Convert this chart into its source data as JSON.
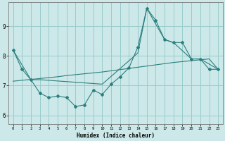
{
  "xlabel": "Humidex (Indice chaleur)",
  "background_color": "#cce8e8",
  "line_color": "#2d7f7f",
  "grid_color": "#99cccc",
  "xlim": [
    -0.5,
    23.5
  ],
  "ylim": [
    5.7,
    9.8
  ],
  "yticks": [
    6,
    7,
    8,
    9
  ],
  "xticks": [
    0,
    1,
    2,
    3,
    4,
    5,
    6,
    7,
    8,
    9,
    10,
    11,
    12,
    13,
    14,
    15,
    16,
    17,
    18,
    19,
    20,
    21,
    22,
    23
  ],
  "line1_x": [
    0,
    1,
    2,
    3,
    4,
    5,
    6,
    7,
    8,
    9,
    10,
    11,
    12,
    13,
    14,
    15,
    16,
    17,
    18,
    19,
    20,
    21,
    22,
    23
  ],
  "line1_y": [
    8.2,
    7.55,
    7.2,
    6.75,
    6.6,
    6.65,
    6.6,
    6.3,
    6.35,
    6.85,
    6.7,
    7.05,
    7.3,
    7.6,
    8.3,
    9.6,
    9.2,
    8.55,
    8.45,
    8.45,
    7.9,
    7.9,
    7.55,
    7.55
  ],
  "line2_x": [
    0,
    2,
    3,
    10,
    14,
    15,
    17,
    18,
    20,
    21,
    23
  ],
  "line2_y": [
    8.2,
    7.2,
    7.2,
    7.05,
    8.1,
    9.6,
    8.55,
    8.45,
    7.9,
    7.9,
    7.55
  ],
  "line3_x": [
    0,
    1,
    2,
    3,
    4,
    5,
    6,
    7,
    8,
    9,
    10,
    11,
    12,
    13,
    14,
    15,
    16,
    17,
    18,
    19,
    20,
    21,
    22,
    23
  ],
  "line3_y": [
    7.15,
    7.18,
    7.21,
    7.24,
    7.27,
    7.3,
    7.34,
    7.37,
    7.4,
    7.43,
    7.46,
    7.5,
    7.54,
    7.58,
    7.62,
    7.66,
    7.7,
    7.74,
    7.78,
    7.81,
    7.84,
    7.87,
    7.9,
    7.55
  ]
}
